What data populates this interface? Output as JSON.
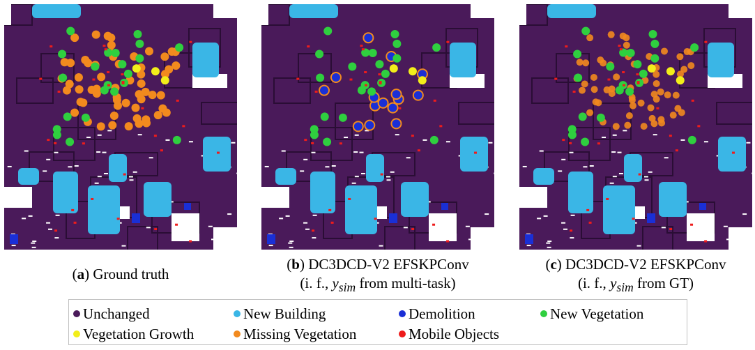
{
  "figure": {
    "panels": [
      {
        "id": "a",
        "caption_letter": "a",
        "caption_line1": "Ground truth",
        "caption_line2": ""
      },
      {
        "id": "b",
        "caption_letter": "b",
        "caption_line1": "DC3DCD-V2 EFSKPConv",
        "caption_line2_prefix": "(i. f., ",
        "caption_symbol": "y",
        "caption_subscript": "sim",
        "caption_line2_suffix": " from multi-task)"
      },
      {
        "id": "c",
        "caption_letter": "c",
        "caption_line1": "DC3DCD-V2 EFSKPConv",
        "caption_line2_prefix": "(i. f., ",
        "caption_symbol": "y",
        "caption_subscript": "sim",
        "caption_line2_suffix": " from GT)"
      }
    ],
    "legend": [
      {
        "label": "Unchanged",
        "color": "#4a1a5a"
      },
      {
        "label": "New Building",
        "color": "#3ab6e6"
      },
      {
        "label": "Demolition",
        "color": "#1a2fd6"
      },
      {
        "label": "New Vegetation",
        "color": "#2fcf3f"
      },
      {
        "label": "Vegetation Growth",
        "color": "#f2ee1a"
      },
      {
        "label": "Missing Vegetation",
        "color": "#f28a1e"
      },
      {
        "label": "Mobile Objects",
        "color": "#ee1c1c"
      }
    ]
  }
}
